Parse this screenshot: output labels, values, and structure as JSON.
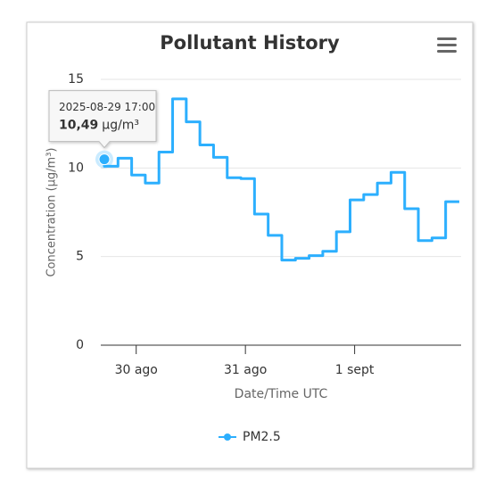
{
  "chart_data": {
    "type": "line",
    "title": "Pollutant History",
    "x": [
      "2025-08-29 17:00",
      "2025-08-29 20:00",
      "2025-08-29 23:00",
      "2025-08-30 02:00",
      "2025-08-30 05:00",
      "2025-08-30 08:00",
      "2025-08-30 11:00",
      "2025-08-30 14:00",
      "2025-08-30 17:00",
      "2025-08-30 20:00",
      "2025-08-30 23:00",
      "2025-08-31 02:00",
      "2025-08-31 05:00",
      "2025-08-31 08:00",
      "2025-08-31 11:00",
      "2025-08-31 14:00",
      "2025-08-31 17:00",
      "2025-08-31 20:00",
      "2025-08-31 23:00",
      "2025-09-01 02:00",
      "2025-09-01 05:00",
      "2025-09-01 08:00",
      "2025-09-01 11:00",
      "2025-09-01 14:00",
      "2025-09-01 17:00",
      "2025-09-01 20:00",
      "2025-09-01 23:00"
    ],
    "series": [
      {
        "name": "PM2.5",
        "color": "#2caffe",
        "unit": "µg/m³",
        "values": [
          10.49,
          10.1,
          10.55,
          9.6,
          9.15,
          10.9,
          13.9,
          12.6,
          11.3,
          10.6,
          9.45,
          9.4,
          7.4,
          6.2,
          4.8,
          4.9,
          5.05,
          5.3,
          6.4,
          8.2,
          8.5,
          9.15,
          9.75,
          7.7,
          5.9,
          6.05,
          8.1
        ],
        "value_labels": [
          "10,49",
          null,
          null,
          null,
          null,
          null,
          null,
          null,
          null,
          null,
          null,
          null,
          null,
          null,
          null,
          null,
          null,
          null,
          null,
          null,
          null,
          null,
          null,
          null,
          null,
          null,
          null
        ]
      }
    ],
    "xlabel": "Date/Time UTC",
    "ylabel": "Concentration (µg/m³)",
    "xlim": [
      "2025-08-29 16:13",
      "2025-09-01 23:24"
    ],
    "xticks": [
      {
        "value": "2025-08-30 00:00",
        "label": "30 ago"
      },
      {
        "value": "2025-08-31 00:00",
        "label": "31 ago"
      },
      {
        "value": "2025-09-01 00:00",
        "label": "1 sept"
      }
    ],
    "ylim": [
      0,
      15
    ],
    "yticks": [
      0,
      5,
      10,
      15
    ],
    "grid": true,
    "legend": "bottom"
  }
}
